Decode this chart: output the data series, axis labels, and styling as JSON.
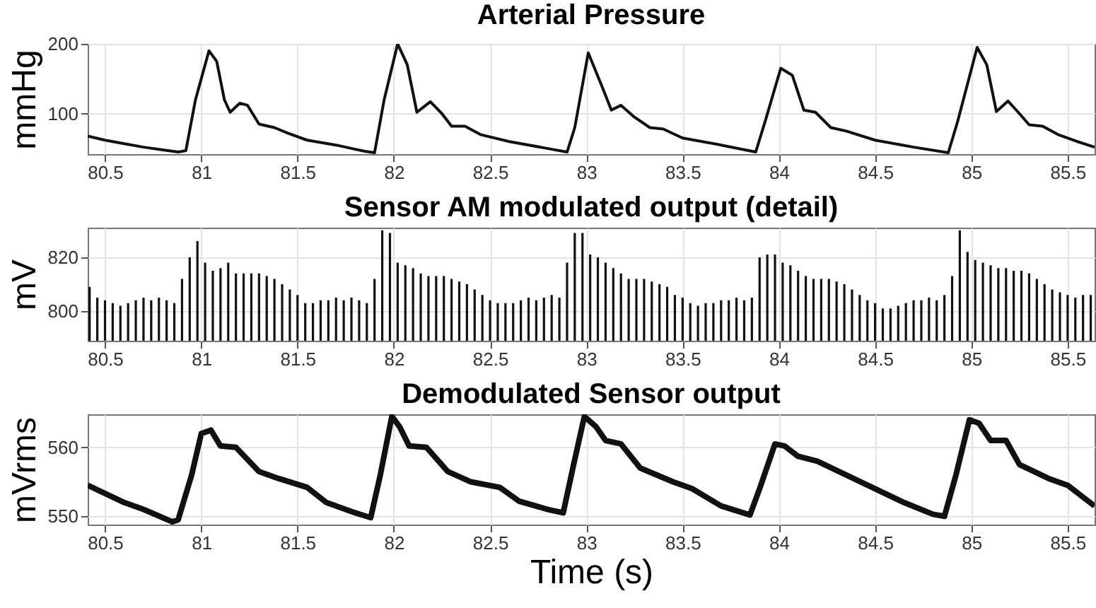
{
  "chart_data": [
    {
      "type": "line",
      "title": "Arterial Pressure",
      "ylabel": "mmHg",
      "xlim": [
        80.41,
        85.64
      ],
      "xticks": [
        80.5,
        81,
        81.5,
        82,
        82.5,
        83,
        83.5,
        84,
        84.5,
        85,
        85.5
      ],
      "ylim": [
        42,
        200
      ],
      "yticks": [
        100,
        200
      ],
      "grid": true,
      "series": [
        {
          "color": "#111111",
          "x": [
            80.41,
            80.5,
            80.6,
            80.7,
            80.8,
            80.88,
            80.92,
            80.97,
            81.04,
            81.08,
            81.12,
            81.15,
            81.2,
            81.24,
            81.3,
            81.38,
            81.45,
            81.55,
            81.7,
            81.85,
            81.9,
            81.95,
            82.02,
            82.07,
            82.12,
            82.19,
            82.25,
            82.3,
            82.37,
            82.45,
            82.6,
            82.8,
            82.9,
            82.94,
            83.01,
            83.08,
            83.13,
            83.18,
            83.25,
            83.33,
            83.4,
            83.5,
            83.7,
            83.88,
            83.93,
            84.01,
            84.07,
            84.13,
            84.19,
            84.27,
            84.35,
            84.5,
            84.7,
            84.88,
            84.93,
            85.03,
            85.08,
            85.13,
            85.19,
            85.25,
            85.3,
            85.37,
            85.45,
            85.55,
            85.64
          ],
          "values": [
            68,
            62,
            57,
            52,
            48,
            45,
            47,
            120,
            190,
            175,
            120,
            102,
            115,
            112,
            85,
            80,
            72,
            62,
            55,
            46,
            44,
            120,
            200,
            170,
            102,
            117,
            100,
            82,
            82,
            70,
            60,
            50,
            45,
            80,
            187,
            140,
            105,
            112,
            95,
            80,
            78,
            65,
            55,
            45,
            90,
            165,
            155,
            105,
            102,
            80,
            75,
            62,
            52,
            44,
            90,
            195,
            170,
            103,
            118,
            100,
            84,
            82,
            70,
            60,
            52
          ]
        }
      ]
    },
    {
      "type": "bar",
      "title": "Sensor AM modulated output (detail)",
      "ylabel": "mV",
      "xlim": [
        80.41,
        85.64
      ],
      "xticks": [
        80.5,
        81,
        81.5,
        82,
        82.5,
        83,
        83.5,
        84,
        84.5,
        85,
        85.5
      ],
      "ylim": [
        789,
        831
      ],
      "yticks": [
        800,
        820
      ],
      "grid": true,
      "series": [
        {
          "color": "#111111",
          "x": [
            80.42,
            80.46,
            80.5,
            80.54,
            80.58,
            80.62,
            80.66,
            80.7,
            80.74,
            80.78,
            80.82,
            80.86,
            80.9,
            80.94,
            80.98,
            81.02,
            81.06,
            81.1,
            81.14,
            81.18,
            81.22,
            81.26,
            81.3,
            81.34,
            81.38,
            81.42,
            81.46,
            81.5,
            81.54,
            81.58,
            81.62,
            81.66,
            81.7,
            81.74,
            81.78,
            81.82,
            81.86,
            81.9,
            81.94,
            81.98,
            82.02,
            82.06,
            82.1,
            82.14,
            82.18,
            82.22,
            82.26,
            82.3,
            82.34,
            82.38,
            82.42,
            82.46,
            82.5,
            82.54,
            82.58,
            82.62,
            82.66,
            82.7,
            82.74,
            82.78,
            82.82,
            82.86,
            82.9,
            82.94,
            82.98,
            83.02,
            83.06,
            83.1,
            83.14,
            83.18,
            83.22,
            83.26,
            83.3,
            83.34,
            83.38,
            83.42,
            83.46,
            83.5,
            83.54,
            83.58,
            83.62,
            83.66,
            83.7,
            83.74,
            83.78,
            83.82,
            83.86,
            83.9,
            83.94,
            83.98,
            84.02,
            84.06,
            84.1,
            84.14,
            84.18,
            84.22,
            84.26,
            84.3,
            84.34,
            84.38,
            84.42,
            84.46,
            84.5,
            84.54,
            84.58,
            84.62,
            84.66,
            84.7,
            84.74,
            84.78,
            84.82,
            84.86,
            84.9,
            84.94,
            84.98,
            85.02,
            85.06,
            85.1,
            85.14,
            85.18,
            85.22,
            85.26,
            85.3,
            85.34,
            85.38,
            85.42,
            85.46,
            85.5,
            85.54,
            85.58,
            85.62
          ],
          "values": [
            809,
            805,
            804,
            803,
            802,
            803,
            804,
            805,
            804,
            805,
            804,
            803,
            812,
            820,
            826,
            818,
            815,
            816,
            818,
            814,
            814,
            814,
            814,
            813,
            812,
            810,
            808,
            806,
            803,
            803,
            804,
            804,
            805,
            804,
            805,
            804,
            803,
            812,
            830,
            829,
            818,
            817,
            816,
            814,
            813,
            813,
            813,
            812,
            811,
            810,
            808,
            806,
            804,
            803,
            803,
            803,
            804,
            805,
            804,
            805,
            806,
            805,
            818,
            829,
            829,
            821,
            820,
            818,
            816,
            814,
            812,
            812,
            812,
            811,
            810,
            809,
            806,
            805,
            803,
            802,
            803,
            803,
            804,
            804,
            805,
            804,
            805,
            820,
            821,
            821,
            818,
            817,
            815,
            813,
            812,
            812,
            812,
            811,
            810,
            808,
            806,
            804,
            803,
            801,
            801,
            802,
            803,
            804,
            804,
            805,
            804,
            806,
            813,
            830,
            822,
            819,
            818,
            817,
            816,
            816,
            815,
            815,
            814,
            812,
            810,
            808,
            807,
            806,
            805,
            806,
            806
          ]
        }
      ]
    },
    {
      "type": "line",
      "title": "Demodulated Sensor output",
      "ylabel": "mVrms",
      "xlabel": "Time (s)",
      "xlim": [
        80.41,
        85.64
      ],
      "xticks": [
        80.5,
        81,
        81.5,
        82,
        82.5,
        83,
        83.5,
        84,
        84.5,
        85,
        85.5
      ],
      "ylim": [
        548.8,
        564.8
      ],
      "yticks": [
        550,
        560
      ],
      "grid": true,
      "series": [
        {
          "color": "#111111",
          "x": [
            80.41,
            80.6,
            80.7,
            80.85,
            80.88,
            80.95,
            81.0,
            81.05,
            81.1,
            81.18,
            81.3,
            81.4,
            81.55,
            81.65,
            81.8,
            81.88,
            81.93,
            81.99,
            82.03,
            82.08,
            82.17,
            82.28,
            82.4,
            82.55,
            82.65,
            82.8,
            82.88,
            82.93,
            82.99,
            83.05,
            83.1,
            83.18,
            83.28,
            83.45,
            83.55,
            83.7,
            83.85,
            83.9,
            83.98,
            84.03,
            84.1,
            84.2,
            84.35,
            84.5,
            84.65,
            84.8,
            84.86,
            84.92,
            84.99,
            85.04,
            85.1,
            85.18,
            85.25,
            85.4,
            85.5,
            85.57,
            85.64
          ],
          "values": [
            554.5,
            552,
            551,
            549.2,
            549.5,
            556,
            562,
            562.5,
            560.2,
            560,
            556.5,
            555.5,
            554.2,
            552,
            550.5,
            549.8,
            556,
            564.5,
            563,
            560.2,
            560,
            556.5,
            555,
            554.2,
            552.2,
            551,
            550.5,
            557,
            564.5,
            563,
            561,
            560.5,
            557,
            555,
            554,
            551.5,
            550.2,
            554,
            560.5,
            560.2,
            558.7,
            558,
            556,
            554,
            552,
            550.3,
            550,
            556,
            564,
            563.5,
            561,
            561,
            557.5,
            555.5,
            554.5,
            553,
            551.5
          ]
        }
      ]
    }
  ]
}
